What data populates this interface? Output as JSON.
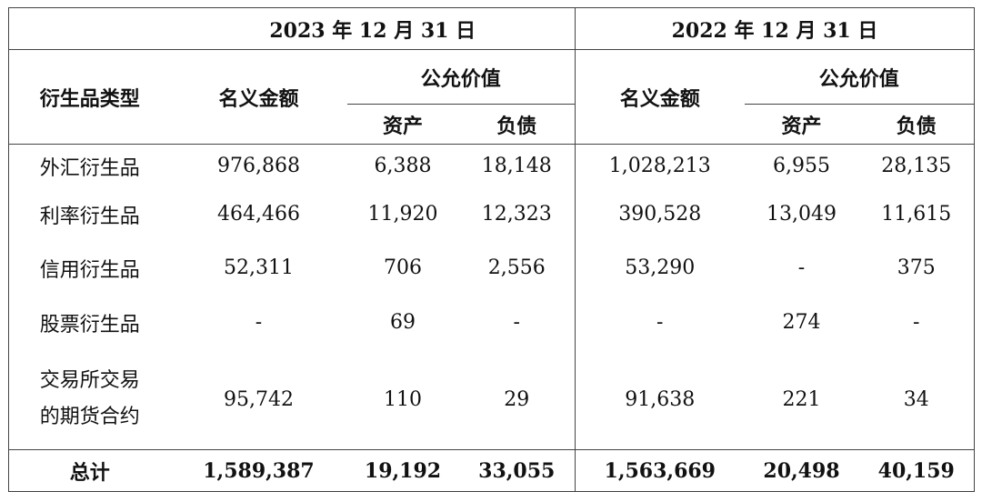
{
  "header": {
    "period_2023": "2023 年 12 月 31 日",
    "period_2022": "2022 年 12 月 31 日",
    "col_type": "衍生品类型",
    "col_notional": "名义金额",
    "col_fair_value": "公允价值",
    "col_assets": "资产",
    "col_liabilities": "负债"
  },
  "rows": [
    {
      "type": "外汇衍生品",
      "n23": "976,868",
      "a23": "6,388",
      "l23": "18,148",
      "n22": "1,028,213",
      "a22": "6,955",
      "l22": "28,135"
    },
    {
      "type": "利率衍生品",
      "n23": "464,466",
      "a23": "11,920",
      "l23": "12,323",
      "n22": "390,528",
      "a22": "13,049",
      "l22": "11,615"
    },
    {
      "type": "信用衍生品",
      "n23": "52,311",
      "a23": "706",
      "l23": "2,556",
      "n22": "53,290",
      "a22": "-",
      "l22": "375"
    },
    {
      "type": "股票衍生品",
      "n23": "-",
      "a23": "69",
      "l23": "-",
      "n22": "-",
      "a22": "274",
      "l22": "-"
    },
    {
      "type_line1": "交易所交易",
      "type_line2": "的期货合约",
      "n23": "95,742",
      "a23": "110",
      "l23": "29",
      "n22": "91,638",
      "a22": "221",
      "l22": "34"
    }
  ],
  "total": {
    "label": "总计",
    "n23": "1,589,387",
    "a23": "19,192",
    "l23": "33,055",
    "n22": "1,563,669",
    "a22": "20,498",
    "l22": "40,159"
  }
}
